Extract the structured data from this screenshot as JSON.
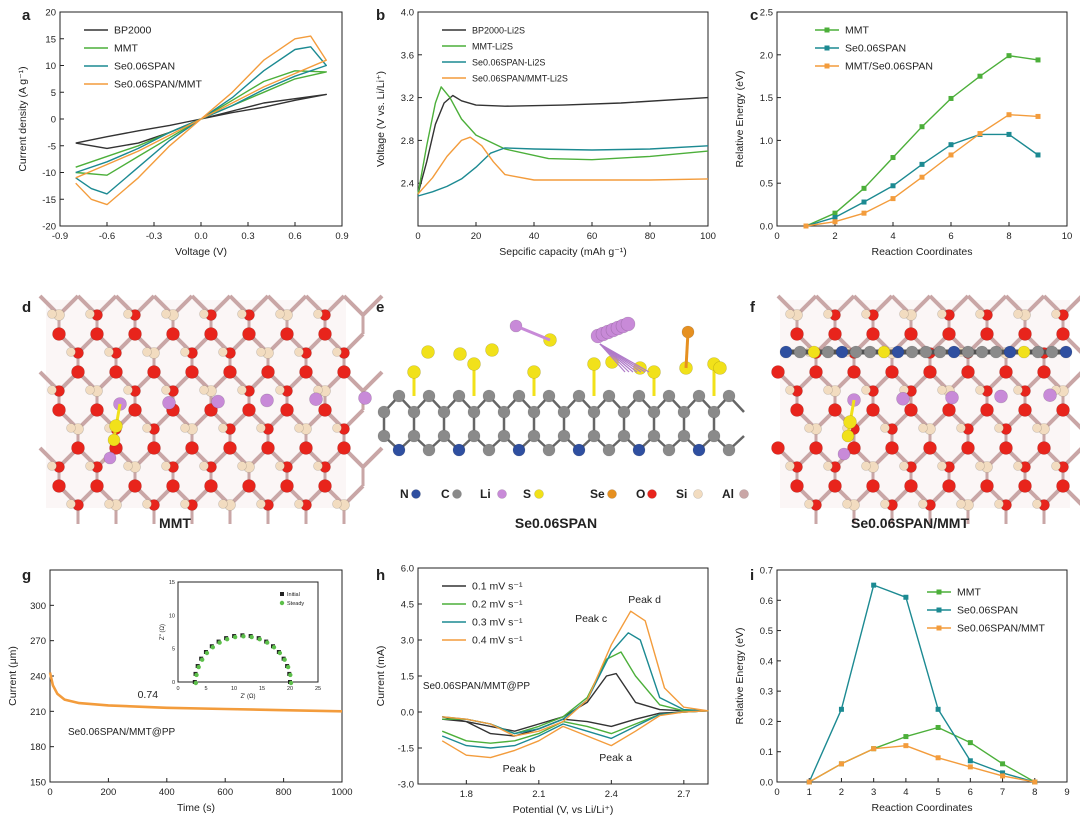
{
  "chart_data": [
    {
      "panel": "a",
      "type": "line",
      "xlabel": "Voltage (V)",
      "ylabel": "Current density (A g⁻¹)",
      "xlim": [
        -0.9,
        0.9
      ],
      "ylim": [
        -20,
        20
      ],
      "xticks": [
        "-0.9",
        "-0.6",
        "-0.3",
        "0.0",
        "0.3",
        "0.6",
        "0.9"
      ],
      "yticks": [
        "-20",
        "-15",
        "-10",
        "-5",
        "0",
        "5",
        "10",
        "15",
        "20"
      ],
      "legend_position": "top-left",
      "series": [
        {
          "name": "BP2000",
          "color": "#333333",
          "x": [
            -0.8,
            -0.6,
            -0.4,
            -0.2,
            0,
            0.2,
            0.4,
            0.6,
            0.8,
            0.6,
            0.4,
            0.2,
            0,
            -0.2,
            -0.4,
            -0.6,
            -0.8
          ],
          "y": [
            -4.5,
            -5.5,
            -4.5,
            -2.5,
            0,
            1.5,
            3,
            3.8,
            4.6,
            3.5,
            2.2,
            1.2,
            0,
            -1.2,
            -2.2,
            -3.3,
            -4.5
          ]
        },
        {
          "name": "MMT",
          "color": "#4caf3a",
          "x": [
            -0.8,
            -0.6,
            -0.4,
            -0.2,
            0,
            0.2,
            0.4,
            0.6,
            0.8,
            0.6,
            0.4,
            0.2,
            0,
            -0.2,
            -0.4,
            -0.6,
            -0.8
          ],
          "y": [
            -10,
            -10.5,
            -7,
            -3.5,
            0,
            3.5,
            7,
            9,
            8.8,
            7.5,
            5,
            2.5,
            0,
            -2.5,
            -5,
            -7,
            -9
          ]
        },
        {
          "name": "Se0.06SPAN",
          "color": "#1c8a92",
          "x": [
            -0.8,
            -0.7,
            -0.6,
            -0.4,
            -0.2,
            0,
            0.2,
            0.4,
            0.6,
            0.7,
            0.8,
            0.6,
            0.4,
            0.2,
            0,
            -0.2,
            -0.4,
            -0.6,
            -0.8
          ],
          "y": [
            -11,
            -13,
            -14,
            -9,
            -4,
            0,
            4,
            9,
            13,
            13.5,
            10,
            8,
            5.5,
            2.5,
            0,
            -2.5,
            -5.5,
            -8,
            -10
          ]
        },
        {
          "name": "Se0.06SPAN/MMT",
          "color": "#f39c3c",
          "x": [
            -0.8,
            -0.7,
            -0.6,
            -0.4,
            -0.2,
            0,
            0.2,
            0.4,
            0.6,
            0.7,
            0.8,
            0.6,
            0.4,
            0.2,
            0,
            -0.2,
            -0.4,
            -0.6,
            -0.8
          ],
          "y": [
            -12,
            -15,
            -16,
            -11,
            -5,
            0,
            5,
            11,
            15,
            15.5,
            11,
            8.5,
            6,
            3,
            0,
            -3,
            -6,
            -8.5,
            -11
          ]
        }
      ]
    },
    {
      "panel": "b",
      "type": "line",
      "xlabel": "Sepcific capacity (mAh g⁻¹)",
      "ylabel": "Voltage (V vs. Li/Li⁺)",
      "xlim": [
        0,
        100
      ],
      "ylim": [
        2.0,
        4.0
      ],
      "xticks": [
        "0",
        "20",
        "40",
        "60",
        "80",
        "100"
      ],
      "yticks": [
        "2.4",
        "2.8",
        "3.2",
        "3.6",
        "4.0"
      ],
      "legend_position": "top-left",
      "series": [
        {
          "name": "BP2000-Li2S",
          "color": "#333333",
          "x": [
            0,
            3,
            6,
            9,
            12,
            15,
            20,
            30,
            50,
            70,
            100
          ],
          "y": [
            2.3,
            2.6,
            2.95,
            3.15,
            3.22,
            3.17,
            3.13,
            3.12,
            3.13,
            3.15,
            3.2
          ]
        },
        {
          "name": "MMT-Li2S",
          "color": "#4caf3a",
          "x": [
            0,
            3,
            6,
            8,
            11,
            15,
            20,
            30,
            45,
            60,
            80,
            100
          ],
          "y": [
            2.3,
            2.75,
            3.15,
            3.3,
            3.2,
            3.0,
            2.85,
            2.72,
            2.63,
            2.62,
            2.65,
            2.7
          ]
        },
        {
          "name": "Se0.06SPAN-Li2S",
          "color": "#1c8a92",
          "x": [
            0,
            5,
            10,
            15,
            20,
            25,
            30,
            40,
            60,
            80,
            100
          ],
          "y": [
            2.28,
            2.32,
            2.37,
            2.44,
            2.55,
            2.68,
            2.73,
            2.72,
            2.71,
            2.72,
            2.75
          ]
        },
        {
          "name": "Se0.06SPAN/MMT-Li2S",
          "color": "#f39c3c",
          "x": [
            0,
            5,
            10,
            15,
            18,
            22,
            26,
            30,
            40,
            60,
            80,
            100
          ],
          "y": [
            2.3,
            2.45,
            2.65,
            2.8,
            2.83,
            2.75,
            2.6,
            2.48,
            2.43,
            2.43,
            2.43,
            2.44
          ]
        }
      ]
    },
    {
      "panel": "c",
      "type": "line",
      "xlabel": "Reaction Coordinates",
      "ylabel": "Relative Energy (eV)",
      "xlim": [
        0,
        10
      ],
      "ylim": [
        0,
        2.5
      ],
      "xticks": [
        "0",
        "2",
        "4",
        "6",
        "8",
        "10"
      ],
      "yticks": [
        "0.0",
        "0.5",
        "1.0",
        "1.5",
        "2.0",
        "2.5"
      ],
      "legend_position": "top-left",
      "series": [
        {
          "name": "MMT",
          "color": "#4caf3a",
          "x": [
            1,
            2,
            3,
            4,
            5,
            6,
            7,
            8,
            9
          ],
          "y": [
            0,
            0.15,
            0.44,
            0.8,
            1.16,
            1.49,
            1.75,
            1.99,
            1.94
          ]
        },
        {
          "name": "Se0.06SPAN",
          "color": "#1c8a92",
          "x": [
            1,
            2,
            3,
            4,
            5,
            6,
            7,
            8,
            9
          ],
          "y": [
            0,
            0.1,
            0.28,
            0.47,
            0.72,
            0.95,
            1.07,
            1.07,
            0.83
          ]
        },
        {
          "name": "MMT/Se0.06SPAN",
          "color": "#f39c3c",
          "x": [
            1,
            2,
            3,
            4,
            5,
            6,
            7,
            8,
            9
          ],
          "y": [
            0,
            0.05,
            0.15,
            0.32,
            0.57,
            0.83,
            1.08,
            1.3,
            1.28
          ]
        }
      ]
    },
    {
      "panel": "g",
      "type": "line",
      "xlabel": "Time (s)",
      "ylabel": "Current (μm)",
      "xlim": [
        0,
        1000
      ],
      "ylim": [
        150,
        330
      ],
      "xticks": [
        "0",
        "200",
        "400",
        "600",
        "800",
        "1000"
      ],
      "yticks": [
        "150",
        "180",
        "210",
        "240",
        "270",
        "300"
      ],
      "annotations": [
        "0.74",
        "Se0.06SPAN/MMT@PP"
      ],
      "series": [
        {
          "name": "",
          "color": "#f39c3c",
          "x": [
            0,
            10,
            25,
            50,
            100,
            200,
            400,
            600,
            800,
            1000
          ],
          "y": [
            243,
            232,
            225,
            220,
            217,
            215,
            213,
            212,
            211,
            210
          ]
        }
      ],
      "inset": {
        "xlabel": "Z' (Ω)",
        "ylabel": "Z'' (Ω)",
        "xticks": [
          "0",
          "5",
          "10",
          "15",
          "20",
          "25"
        ],
        "yticks": [
          "0",
          "5",
          "10",
          "15"
        ],
        "legend": [
          "Initial",
          "Steady"
        ]
      }
    },
    {
      "panel": "h",
      "type": "line",
      "xlabel": "Potential (V, vs Li/Li⁺)",
      "ylabel": "Current (mA)",
      "xlim": [
        1.6,
        2.8
      ],
      "ylim": [
        -3.0,
        6.0
      ],
      "xticks": [
        "1.8",
        "2.1",
        "2.4",
        "2.7"
      ],
      "yticks": [
        "-3.0",
        "-1.5",
        "0.0",
        "1.5",
        "3.0",
        "4.5",
        "6.0"
      ],
      "annotations": [
        "Peak c",
        "Peak d",
        "Peak a",
        "Peak b",
        "Se0.06SPAN/MMT@PP"
      ],
      "legend_position": "top-left",
      "series": [
        {
          "name": "0.1 mV s⁻¹",
          "color": "#333333",
          "x": [
            1.7,
            1.8,
            1.9,
            2.0,
            2.1,
            2.2,
            2.3,
            2.38,
            2.42,
            2.5,
            2.6,
            2.7,
            2.8,
            2.7,
            2.6,
            2.5,
            2.4,
            2.3,
            2.2,
            2.1,
            2.0,
            1.9,
            1.8,
            1.7
          ],
          "y": [
            -0.3,
            -0.4,
            -0.6,
            -0.8,
            -0.5,
            -0.2,
            0.4,
            1.5,
            1.6,
            0.4,
            0.1,
            0.05,
            0.05,
            0,
            -0.05,
            -0.3,
            -0.6,
            -0.4,
            -0.3,
            -0.7,
            -1.0,
            -0.9,
            -0.4,
            -0.2
          ]
        },
        {
          "name": "0.2 mV s⁻¹",
          "color": "#4caf3a",
          "x": [
            1.7,
            1.8,
            1.9,
            2.0,
            2.1,
            2.2,
            2.3,
            2.38,
            2.44,
            2.5,
            2.6,
            2.7,
            2.8,
            2.7,
            2.6,
            2.5,
            2.4,
            2.3,
            2.2,
            2.1,
            2.0,
            1.9,
            1.8,
            1.7
          ],
          "y": [
            -0.3,
            -0.3,
            -0.5,
            -0.9,
            -0.6,
            -0.2,
            0.6,
            2.2,
            2.5,
            1.5,
            0.3,
            0.05,
            0.05,
            0,
            -0.1,
            -0.5,
            -0.9,
            -0.6,
            -0.4,
            -0.9,
            -1.2,
            -1.3,
            -1.2,
            -0.8
          ]
        },
        {
          "name": "0.3 mV s⁻¹",
          "color": "#1c8a92",
          "x": [
            1.7,
            1.8,
            1.9,
            2.0,
            2.1,
            2.2,
            2.3,
            2.4,
            2.47,
            2.52,
            2.6,
            2.7,
            2.8,
            2.7,
            2.6,
            2.5,
            2.4,
            2.3,
            2.2,
            2.1,
            2.0,
            1.9,
            1.8,
            1.7
          ],
          "y": [
            -0.2,
            -0.3,
            -0.5,
            -0.9,
            -0.7,
            -0.3,
            0.5,
            2.5,
            3.3,
            3.0,
            0.6,
            0.1,
            0.05,
            0,
            -0.1,
            -0.6,
            -1.1,
            -0.8,
            -0.5,
            -1.0,
            -1.4,
            -1.5,
            -1.4,
            -1.0
          ]
        },
        {
          "name": "0.4 mV s⁻¹",
          "color": "#f39c3c",
          "x": [
            1.7,
            1.8,
            1.9,
            2.0,
            2.1,
            2.2,
            2.3,
            2.4,
            2.48,
            2.54,
            2.62,
            2.7,
            2.8,
            2.7,
            2.6,
            2.5,
            2.4,
            2.3,
            2.2,
            2.1,
            2.0,
            1.9,
            1.8,
            1.7
          ],
          "y": [
            -0.2,
            -0.3,
            -0.5,
            -1.0,
            -0.8,
            -0.4,
            0.5,
            2.8,
            4.2,
            3.8,
            1.0,
            0.2,
            0.05,
            0,
            -0.15,
            -0.8,
            -1.4,
            -1.0,
            -0.6,
            -1.2,
            -1.6,
            -1.9,
            -1.8,
            -1.2
          ]
        }
      ]
    },
    {
      "panel": "i",
      "type": "line",
      "xlabel": "Reaction Coordinates",
      "ylabel": "Relative Energy (eV)",
      "xlim": [
        0,
        9
      ],
      "ylim": [
        0,
        0.7
      ],
      "xticks": [
        "0",
        "1",
        "2",
        "3",
        "4",
        "5",
        "6",
        "7",
        "8",
        "9"
      ],
      "yticks": [
        "0.0",
        "0.1",
        "0.2",
        "0.3",
        "0.4",
        "0.5",
        "0.6",
        "0.7"
      ],
      "legend_position": "top-right",
      "series": [
        {
          "name": "MMT",
          "color": "#4caf3a",
          "x": [
            1,
            2,
            3,
            4,
            5,
            6,
            7,
            8
          ],
          "y": [
            0,
            0.06,
            0.11,
            0.15,
            0.18,
            0.13,
            0.06,
            0
          ]
        },
        {
          "name": "Se0.06SPAN",
          "color": "#1c8a92",
          "x": [
            1,
            2,
            3,
            4,
            5,
            6,
            7,
            8
          ],
          "y": [
            0,
            0.24,
            0.65,
            0.61,
            0.24,
            0.07,
            0.03,
            0
          ]
        },
        {
          "name": "Se0.06SPAN/MMT",
          "color": "#f39c3c",
          "x": [
            1,
            2,
            3,
            4,
            5,
            6,
            7,
            8
          ],
          "y": [
            0,
            0.06,
            0.11,
            0.12,
            0.08,
            0.05,
            0.02,
            0
          ]
        }
      ]
    }
  ],
  "structures": {
    "d": {
      "caption": "MMT"
    },
    "e": {
      "caption": "Se0.06SPAN",
      "legend": [
        "N",
        "C",
        "Li",
        "S",
        "Se",
        "O",
        "Si",
        "Al"
      ]
    },
    "f": {
      "caption": "Se0.06SPAN/MMT"
    }
  },
  "panel_letters": [
    "a",
    "b",
    "c",
    "d",
    "e",
    "f",
    "g",
    "h",
    "i"
  ],
  "colors": {
    "oxygen": "#e8241c",
    "silicon": "#f2dcc0",
    "aluminum": "#c9a6a6",
    "lithium": "#c88ad8",
    "sulfur": "#f1e11a",
    "carbon": "#8a8a8a",
    "nitrogen": "#2f4fa0",
    "selenium": "#e69020"
  }
}
